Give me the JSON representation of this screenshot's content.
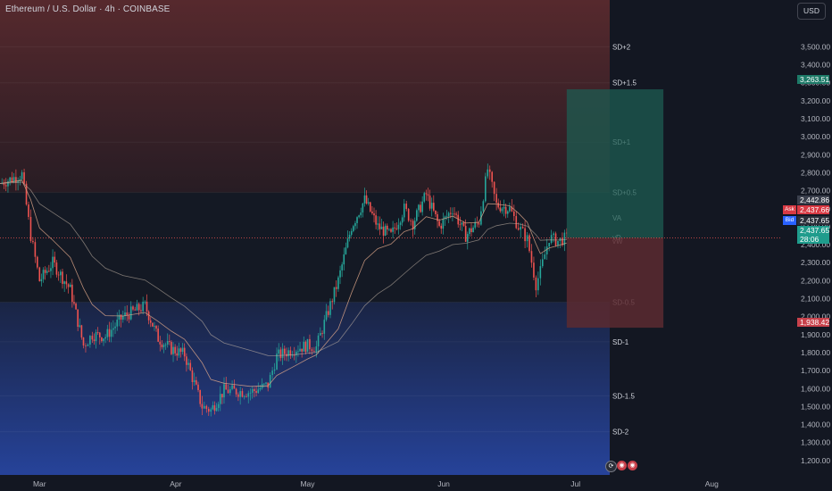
{
  "legend": "Ethereum / U.S. Dollar · 4h · COINBASE",
  "currency_button": "USD",
  "colors": {
    "background": "#131722",
    "up": "#26a69a",
    "down": "#ef5350",
    "upper_band": "#5a2a2e",
    "lower_band": "#1f3a8a",
    "target_zone": "#1d5c52",
    "stop_zone": "#5c2a30"
  },
  "tags": {
    "target": "3,263.51",
    "ask_label": "Ask",
    "ask": "2,437.66",
    "bid_label": "Bid",
    "bid": "2,437.65",
    "mid_price": "2,442.86",
    "last_price": "2,437.65",
    "countdown": "28:06",
    "stop": "1,938.42"
  },
  "tool_icons": [
    "alert-icon",
    "replay-icon",
    "compare-icon"
  ],
  "chart_data": {
    "type": "candlestick",
    "title": "Ethereum / U.S. Dollar · 4h · COINBASE",
    "y_axis": {
      "ticks": [
        "3,500.00",
        "3,400.00",
        "3,300.00",
        "3,200.00",
        "3,100.00",
        "3,000.00",
        "2,900.00",
        "2,800.00",
        "2,700.00",
        "2,600.00",
        "2,500.00",
        "2,400.00",
        "2,300.00",
        "2,200.00",
        "2,100.00",
        "2,000.00",
        "1,900.00",
        "1,800.00",
        "1,700.00",
        "1,600.00",
        "1,500.00",
        "1,400.00",
        "1,300.00",
        "1,200.00"
      ],
      "tick_values": [
        3500,
        3400,
        3300,
        3200,
        3100,
        3000,
        2900,
        2800,
        2700,
        2600,
        2500,
        2400,
        2300,
        2200,
        2100,
        2000,
        1900,
        1800,
        1700,
        1600,
        1500,
        1400,
        1300,
        1200
      ],
      "range": [
        1120,
        3760
      ]
    },
    "x_axis": {
      "labels": [
        "Mar",
        "Apr",
        "May",
        "Jun",
        "Jul",
        "Aug"
      ],
      "label_dates": [
        "2025-03-01",
        "2025-04-01",
        "2025-05-01",
        "2025-06-01",
        "2025-07-01",
        "2025-08-01"
      ],
      "range": [
        "2025-02-20",
        "2025-08-17"
      ]
    },
    "price_path": [
      {
        "date": "2025-02-20",
        "price": 2740
      },
      {
        "date": "2025-02-25",
        "price": 2790
      },
      {
        "date": "2025-02-27",
        "price": 2450
      },
      {
        "date": "2025-03-01",
        "price": 2200
      },
      {
        "date": "2025-03-04",
        "price": 2300
      },
      {
        "date": "2025-03-08",
        "price": 2150
      },
      {
        "date": "2025-03-11",
        "price": 1840
      },
      {
        "date": "2025-03-13",
        "price": 1900
      },
      {
        "date": "2025-03-16",
        "price": 1890
      },
      {
        "date": "2025-03-20",
        "price": 2000
      },
      {
        "date": "2025-03-25",
        "price": 2060
      },
      {
        "date": "2025-03-28",
        "price": 1880
      },
      {
        "date": "2025-03-31",
        "price": 1820
      },
      {
        "date": "2025-04-03",
        "price": 1790
      },
      {
        "date": "2025-04-07",
        "price": 1500
      },
      {
        "date": "2025-04-09",
        "price": 1480
      },
      {
        "date": "2025-04-12",
        "price": 1590
      },
      {
        "date": "2025-04-18",
        "price": 1580
      },
      {
        "date": "2025-04-22",
        "price": 1620
      },
      {
        "date": "2025-04-24",
        "price": 1780
      },
      {
        "date": "2025-04-28",
        "price": 1820
      },
      {
        "date": "2025-05-01",
        "price": 1840
      },
      {
        "date": "2025-05-03",
        "price": 1830
      },
      {
        "date": "2025-05-08",
        "price": 2200
      },
      {
        "date": "2025-05-11",
        "price": 2500
      },
      {
        "date": "2025-05-14",
        "price": 2650
      },
      {
        "date": "2025-05-17",
        "price": 2500
      },
      {
        "date": "2025-05-20",
        "price": 2450
      },
      {
        "date": "2025-05-23",
        "price": 2600
      },
      {
        "date": "2025-05-25",
        "price": 2520
      },
      {
        "date": "2025-05-28",
        "price": 2680
      },
      {
        "date": "2025-05-31",
        "price": 2500
      },
      {
        "date": "2025-06-03",
        "price": 2600
      },
      {
        "date": "2025-06-06",
        "price": 2450
      },
      {
        "date": "2025-06-09",
        "price": 2530
      },
      {
        "date": "2025-06-11",
        "price": 2820
      },
      {
        "date": "2025-06-13",
        "price": 2620
      },
      {
        "date": "2025-06-16",
        "price": 2600
      },
      {
        "date": "2025-06-18",
        "price": 2500
      },
      {
        "date": "2025-06-20",
        "price": 2430
      },
      {
        "date": "2025-06-22",
        "price": 2180
      },
      {
        "date": "2025-06-23",
        "price": 2250
      },
      {
        "date": "2025-06-25",
        "price": 2440
      },
      {
        "date": "2025-06-27",
        "price": 2420
      },
      {
        "date": "2025-06-29",
        "price": 2437.65
      }
    ],
    "bands": [
      {
        "name": "SD+2",
        "price": 3500
      },
      {
        "name": "SD+1.5",
        "price": 3300
      },
      {
        "name": "SD+1",
        "price": 2970
      },
      {
        "name": "SD+0.5",
        "price": 2690
      },
      {
        "name": "VA",
        "price": 2550
      },
      {
        "name": "vD",
        "price": 2440
      },
      {
        "name": "vW",
        "price": 2420
      },
      {
        "name": "SD-0.5",
        "price": 2080
      },
      {
        "name": "SD-1",
        "price": 1860
      },
      {
        "name": "SD-1.5",
        "price": 1560
      },
      {
        "name": "SD-2",
        "price": 1360
      }
    ],
    "position": {
      "entry": 2437.65,
      "target": 3263.51,
      "stop": 1938.42,
      "start_date": "2025-06-29",
      "end_date": "2025-07-21"
    }
  }
}
